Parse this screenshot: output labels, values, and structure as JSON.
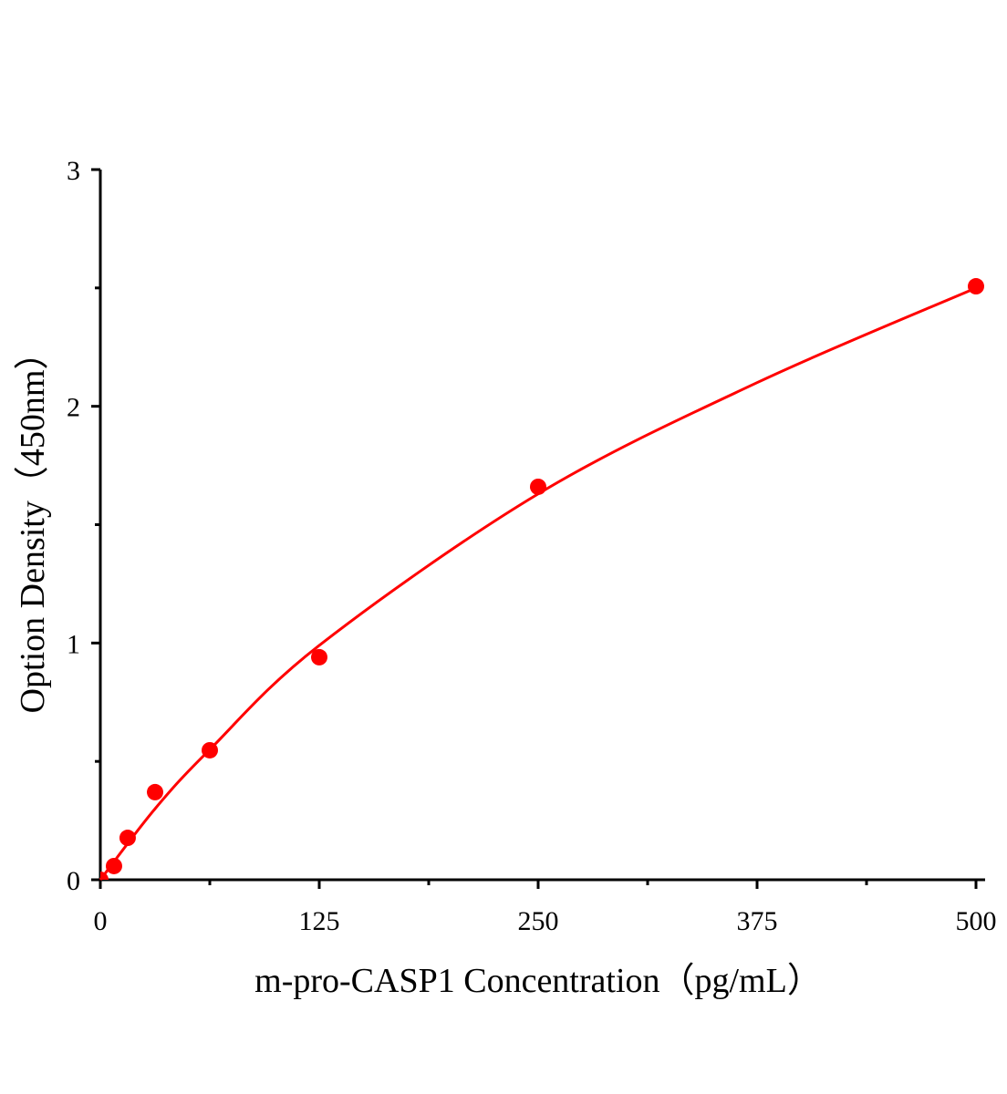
{
  "chart_data": {
    "type": "scatter",
    "title": "",
    "xlabel": "m-pro-CASP1 Concentration（pg/mL）",
    "ylabel": "Option Density（450nm）",
    "xlim": [
      0,
      500
    ],
    "ylim": [
      0,
      3
    ],
    "xticks": [
      "0",
      "125",
      "250",
      "375",
      "500"
    ],
    "yticks": [
      "0",
      "1",
      "2",
      "3"
    ],
    "grid": false,
    "series": [
      {
        "color": "#ff0000",
        "points": [
          {
            "x": 0,
            "y": 0.0
          },
          {
            "x": 7.8,
            "y": 0.058
          },
          {
            "x": 15.6,
            "y": 0.177
          },
          {
            "x": 31.25,
            "y": 0.37
          },
          {
            "x": 62.5,
            "y": 0.547
          },
          {
            "x": 125,
            "y": 0.94
          },
          {
            "x": 250,
            "y": 1.66
          },
          {
            "x": 500,
            "y": 2.507
          }
        ],
        "fit_curve": [
          [
            0,
            0
          ],
          [
            31.25,
            0.3
          ],
          [
            62.5,
            0.55
          ],
          [
            125,
            0.99
          ],
          [
            250,
            1.63
          ],
          [
            375,
            2.1
          ],
          [
            500,
            2.5
          ]
        ]
      }
    ]
  }
}
